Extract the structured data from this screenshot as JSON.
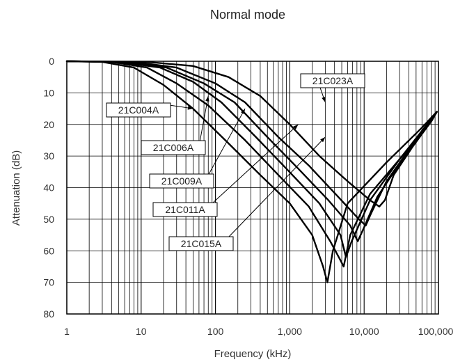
{
  "chart_data": {
    "type": "line",
    "title": "Normal mode",
    "xlabel": "Frequency (kHz)",
    "ylabel": "Attenuation (dB)",
    "x_scale": "log",
    "xlim": [
      1,
      100000
    ],
    "ylim": [
      0,
      80
    ],
    "y_inverted": true,
    "grid": true,
    "x_ticks": [
      1,
      10,
      100,
      1000,
      10000,
      100000
    ],
    "x_tick_labels": [
      "1",
      "10",
      "100",
      "1,000",
      "10,000",
      "100,000"
    ],
    "y_ticks": [
      0,
      10,
      20,
      30,
      40,
      50,
      60,
      70,
      80
    ],
    "y_tick_labels": [
      "0",
      "10",
      "20",
      "30",
      "40",
      "50",
      "60",
      "70",
      "80"
    ],
    "series": [
      {
        "name": "21C004A",
        "x": [
          1,
          3,
          8,
          20,
          50,
          150,
          400,
          1000,
          2000,
          2800,
          3200,
          3800,
          6000,
          20000,
          60000,
          95000
        ],
        "y": [
          0,
          0.2,
          2,
          7.5,
          15,
          26,
          36,
          45,
          55,
          65,
          70,
          60,
          45,
          32,
          21,
          16
        ]
      },
      {
        "name": "21C006A",
        "x": [
          1,
          4,
          12,
          30,
          80,
          250,
          700,
          1800,
          3500,
          4800,
          5300,
          6500,
          12000,
          30000,
          70000,
          95000
        ],
        "y": [
          0,
          0.2,
          2,
          7,
          14,
          25,
          36,
          46,
          57,
          63,
          65,
          55,
          42,
          31,
          20,
          16
        ]
      },
      {
        "name": "21C009A",
        "x": [
          1,
          5,
          18,
          50,
          120,
          350,
          900,
          2500,
          4800,
          5700,
          6800,
          12000,
          30000,
          80000,
          95000
        ],
        "y": [
          0,
          0.2,
          2,
          6.5,
          13,
          24,
          34,
          45,
          55,
          62,
          57,
          44,
          31,
          19,
          16
        ]
      },
      {
        "name": "21C011A",
        "x": [
          1,
          6,
          22,
          70,
          180,
          500,
          1300,
          3300,
          6500,
          8200,
          9800,
          15000,
          35000,
          80000,
          95000
        ],
        "y": [
          0,
          0.2,
          2,
          7,
          13,
          24,
          34,
          44,
          52,
          57,
          53,
          43,
          30,
          19,
          16
        ]
      },
      {
        "name": "21C015A",
        "x": [
          1,
          8,
          30,
          100,
          250,
          700,
          1800,
          4500,
          8500,
          10500,
          12500,
          20000,
          40000,
          80000,
          95000
        ],
        "y": [
          0,
          0.2,
          2,
          7,
          13,
          24,
          33,
          43,
          50,
          52,
          48,
          38,
          28,
          19,
          16
        ]
      },
      {
        "name": "21C023A",
        "x": [
          1,
          12,
          50,
          150,
          400,
          1000,
          2500,
          6000,
          12000,
          16000,
          19000,
          25000,
          45000,
          80000,
          95000
        ],
        "y": [
          0,
          0.2,
          1.5,
          5,
          11,
          20,
          30,
          38,
          44,
          46,
          44,
          36,
          27,
          19,
          16
        ]
      }
    ],
    "callouts": [
      {
        "label": "21C004A",
        "target": [
          50,
          15
        ]
      },
      {
        "label": "21C006A",
        "target": [
          80,
          11
        ]
      },
      {
        "label": "21C009A",
        "target": [
          250,
          15
        ]
      },
      {
        "label": "21C011A",
        "target": [
          1300,
          20
        ]
      },
      {
        "label": "21C015A",
        "target": [
          3000,
          24
        ]
      },
      {
        "label": "21C023A",
        "target": [
          3000,
          13
        ]
      }
    ]
  }
}
